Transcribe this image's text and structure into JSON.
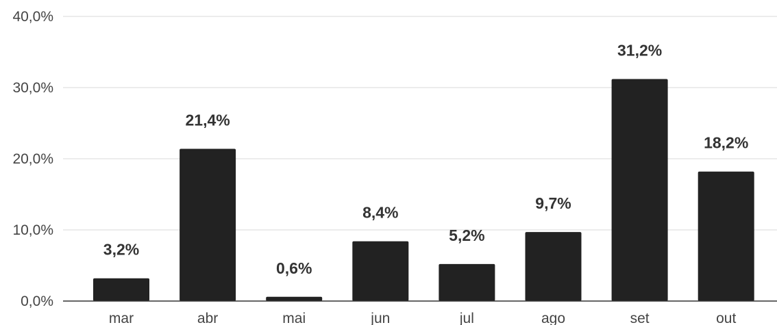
{
  "chart_data": {
    "type": "bar",
    "categories": [
      "mar",
      "abr",
      "mai",
      "jun",
      "jul",
      "ago",
      "set",
      "out"
    ],
    "values": [
      3.2,
      21.4,
      0.6,
      8.4,
      5.2,
      9.7,
      31.2,
      18.2
    ],
    "data_labels": [
      "3,2%",
      "21,4%",
      "0,6%",
      "8,4%",
      "5,2%",
      "9,7%",
      "31,2%",
      "18,2%"
    ],
    "yticks": [
      0,
      10,
      20,
      30,
      40
    ],
    "ytick_labels": [
      "0,0%",
      "10,0%",
      "20,0%",
      "30,0%",
      "40,0%"
    ],
    "ylim": [
      0,
      40
    ],
    "title": "",
    "xlabel": "",
    "ylabel": "",
    "grid": true,
    "bar_color": "#222222"
  }
}
